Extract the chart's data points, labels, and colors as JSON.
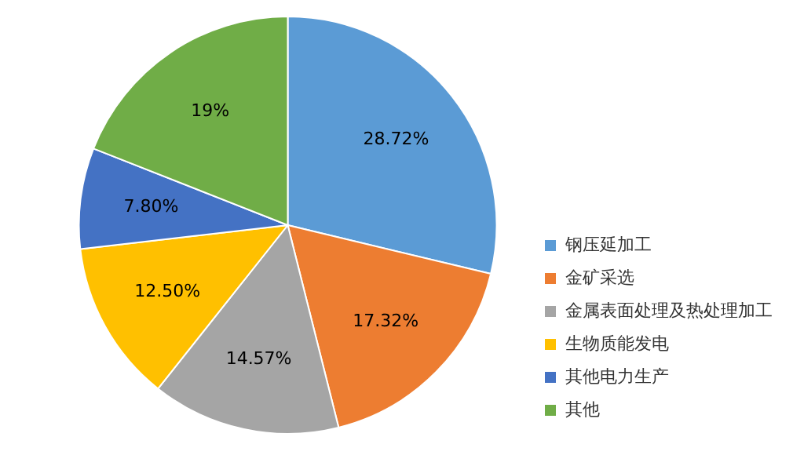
{
  "chart_data": {
    "type": "pie",
    "categories": [
      "钢压延加工",
      "金矿采选",
      "金属表面处理及热处理加工",
      "生物质能发电",
      "其他电力生产",
      "其他"
    ],
    "values": [
      28.72,
      17.32,
      14.57,
      12.5,
      7.8,
      19
    ],
    "colors": [
      "#5b9bd5",
      "#ed7d31",
      "#a5a5a5",
      "#ffc000",
      "#4472c4",
      "#70ad47"
    ],
    "value_labels": [
      "28.72%",
      "17.32%",
      "14.57%",
      "12.50%",
      "7.80%",
      "19%"
    ],
    "legend": "bottom right"
  }
}
